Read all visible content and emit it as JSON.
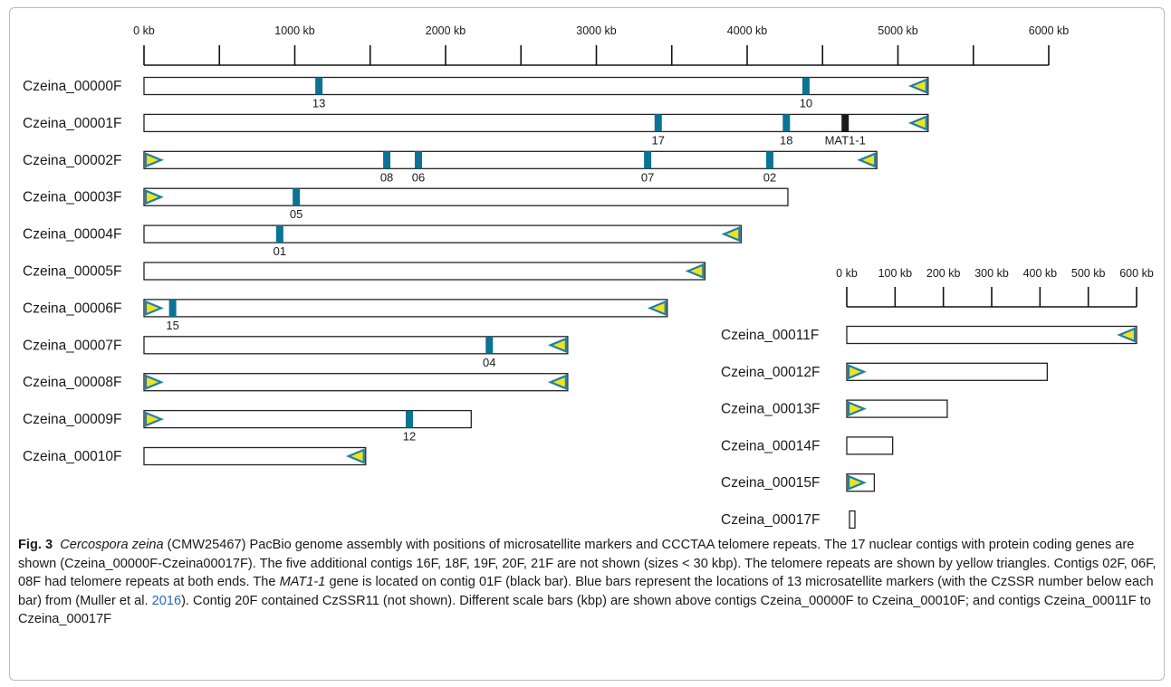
{
  "diagram": {
    "scale_a": {
      "unit": "kb",
      "tick_labels": [
        "0 kb",
        "1000 kb",
        "2000 kb",
        "3000 kb",
        "4000 kb",
        "5000 kb",
        "6000 kb"
      ],
      "max": 6000
    },
    "scale_b": {
      "unit": "kb",
      "tick_labels": [
        "0 kb",
        "100 kb",
        "200 kb",
        "300 kb",
        "400 kb",
        "500 kb",
        "600 kb"
      ],
      "max": 600
    },
    "contigs_a": [
      {
        "name": "Czeina_00000F",
        "length_kb": 5200,
        "telo_left": false,
        "telo_right": true,
        "markers": [
          {
            "label": "13",
            "pos_kb": 1160
          },
          {
            "label": "10",
            "pos_kb": 4390
          }
        ],
        "gene": [
          {
            "label": "",
            "pos_kb": 0
          }
        ]
      },
      {
        "name": "Czeina_00001F",
        "length_kb": 5200,
        "telo_left": false,
        "telo_right": true,
        "markers": [
          {
            "label": "17",
            "pos_kb": 3410
          },
          {
            "label": "18",
            "pos_kb": 4260
          }
        ],
        "gene": [
          {
            "label": "MAT1-1",
            "pos_kb": 4650
          }
        ]
      },
      {
        "name": "Czeina_00002F",
        "length_kb": 4860,
        "telo_left": true,
        "telo_right": true,
        "markers": [
          {
            "label": "08",
            "pos_kb": 1610
          },
          {
            "label": "06",
            "pos_kb": 1820
          },
          {
            "label": "07",
            "pos_kb": 3340
          },
          {
            "label": "02",
            "pos_kb": 4150
          }
        ],
        "gene": []
      },
      {
        "name": "Czeina_00003F",
        "length_kb": 4270,
        "telo_left": true,
        "telo_right": false,
        "markers": [
          {
            "label": "05",
            "pos_kb": 1010
          }
        ],
        "gene": []
      },
      {
        "name": "Czeina_00004F",
        "length_kb": 3960,
        "telo_left": false,
        "telo_right": true,
        "markers": [
          {
            "label": "01",
            "pos_kb": 900
          }
        ],
        "gene": []
      },
      {
        "name": "Czeina_00005F",
        "length_kb": 3720,
        "telo_left": false,
        "telo_right": true,
        "markers": [],
        "gene": []
      },
      {
        "name": "Czeina_00006F",
        "length_kb": 3470,
        "telo_left": true,
        "telo_right": true,
        "markers": [
          {
            "label": "15",
            "pos_kb": 190
          }
        ],
        "gene": []
      },
      {
        "name": "Czeina_00007F",
        "length_kb": 2810,
        "telo_left": false,
        "telo_right": true,
        "markers": [
          {
            "label": "04",
            "pos_kb": 2290
          }
        ],
        "gene": []
      },
      {
        "name": "Czeina_00008F",
        "length_kb": 2810,
        "telo_left": true,
        "telo_right": true,
        "markers": [],
        "gene": []
      },
      {
        "name": "Czeina_00009F",
        "length_kb": 2170,
        "telo_left": true,
        "telo_right": false,
        "markers": [
          {
            "label": "12",
            "pos_kb": 1760
          }
        ],
        "gene": []
      },
      {
        "name": "Czeina_00010F",
        "length_kb": 1470,
        "telo_left": false,
        "telo_right": true,
        "markers": [],
        "gene": []
      }
    ],
    "contigs_b": [
      {
        "name": "Czeina_00011F",
        "length_kb": 600,
        "telo_left": false,
        "telo_right": true
      },
      {
        "name": "Czeina_00012F",
        "length_kb": 415,
        "telo_left": true,
        "telo_right": false
      },
      {
        "name": "Czeina_00013F",
        "length_kb": 208,
        "telo_left": true,
        "telo_right": false
      },
      {
        "name": "Czeina_00014F",
        "length_kb": 95,
        "telo_left": false,
        "telo_right": false
      },
      {
        "name": "Czeina_00015F",
        "length_kb": 57,
        "telo_left": true,
        "telo_right": false
      },
      {
        "name": "Czeina_00017F",
        "length_kb": 14,
        "telo_left": false,
        "telo_right": false
      }
    ],
    "colors": {
      "marker": "#0b7394",
      "gene": "#1a1a1a",
      "telomere_fill": "#f2e21e",
      "telomere_stroke": "#1f7fa8",
      "outline": "#222222"
    }
  },
  "caption": {
    "fig_label": "Fig. 3",
    "species": "Cercospora zeina",
    "p1": " (CMW25467) PacBio genome assembly with positions of microsatellite markers and CCCTAA telomere repeats. The 17 nuclear contigs with protein coding genes are shown (Czeina_00000F-Czeina00017F). The five additional contigs 16F, 18F, 19F, 20F, 21F are not shown (sizes < 30 kbp). The telomere repeats are shown by yellow triangles. Contigs 02F, 06F, 08F had telomere repeats at both ends. The ",
    "gene_name": "MAT1-1",
    "p2": " gene is located on contig 01F (black bar). Blue bars represent the locations of 13 microsatellite markers (with the CzSSR number below each bar) from (Muller et al. ",
    "cite_year": "2016",
    "p3": "). Contig 20F contained CzSSR11 (not shown). Different scale bars (kbp) are shown above contigs Czeina_00000F to Czeina_00010F; and contigs Czeina_00011F to Czeina_00017F"
  }
}
